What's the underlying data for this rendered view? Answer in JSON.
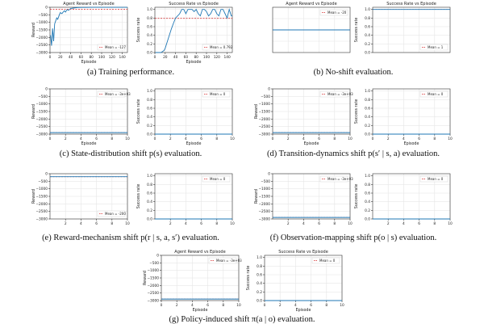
{
  "captions": {
    "a": "(a) Training performance.",
    "b": "(b) No-shift evaluation.",
    "c": "(c) State-distribution shift p(s) evaluation.",
    "d": "(d) Transition-dynamics shift p(s′ | s, a) evaluation.",
    "e": "(e) Reward-mechanism shift p(r | s, a, s′) evaluation.",
    "f": "(f) Observation-mapping shift p(o | s) evaluation.",
    "g": "(g) Policy-induced shift π(a | o) evaluation."
  },
  "colors": {
    "line": "#1f77b4",
    "mean": "#d62728",
    "grid": "#e6e6e6",
    "axis": "#333333"
  },
  "chart_data": [
    {
      "id": "a-reward",
      "type": "line",
      "title": "Agent Reward vs Episode",
      "xlabel": "Episode",
      "ylabel": "Reward",
      "xlim": [
        0,
        150
      ],
      "ylim": [
        -3000,
        0
      ],
      "xticks": [
        0,
        20,
        40,
        60,
        80,
        100,
        120,
        140
      ],
      "yticks": [
        0,
        -500,
        -1000,
        -1500,
        -2000,
        -2500,
        -3000
      ],
      "ytick_labels": [
        "0",
        "−500",
        "−1000",
        "−1500",
        "−2000",
        "−2500",
        "−3000"
      ],
      "grid": true,
      "legend": "bottom-right",
      "legend_text": "Mean = -127",
      "mean": -127,
      "x": [
        1,
        3,
        5,
        7,
        9,
        11,
        13,
        15,
        18,
        20,
        23,
        26,
        28,
        30,
        33,
        36,
        40,
        44,
        48,
        52,
        56,
        60,
        70,
        80,
        90,
        100,
        110,
        120,
        130,
        140,
        150
      ],
      "y": [
        -1850,
        -2550,
        -1400,
        -2250,
        -1100,
        -900,
        -700,
        -800,
        -500,
        -350,
        -420,
        -300,
        -230,
        -320,
        -150,
        -200,
        -80,
        -60,
        -40,
        -20,
        -15,
        -10,
        -8,
        -6,
        -5,
        -5,
        -5,
        -5,
        -5,
        -5,
        -5
      ]
    },
    {
      "id": "a-success",
      "type": "line",
      "title": "Success Rate vs Episode",
      "xlabel": "Episode",
      "ylabel": "Success rate",
      "xlim": [
        0,
        150
      ],
      "ylim": [
        0,
        1.05
      ],
      "xticks": [
        0,
        20,
        40,
        60,
        80,
        100,
        120,
        140
      ],
      "yticks": [
        0,
        0.2,
        0.4,
        0.6,
        0.8,
        1.0
      ],
      "ytick_labels": [
        "0.0",
        "0.2",
        "0.4",
        "0.6",
        "0.8",
        "1.0"
      ],
      "grid": true,
      "legend": "bottom-right",
      "legend_text": "Mean = 0.792",
      "mean": 0.792,
      "x": [
        1,
        12,
        18,
        20,
        24,
        28,
        32,
        36,
        40,
        44,
        48,
        52,
        56,
        60,
        64,
        68,
        72,
        76,
        80,
        84,
        88,
        92,
        96,
        100,
        104,
        108,
        112,
        116,
        120,
        124,
        128,
        132,
        136,
        140,
        144,
        148,
        150
      ],
      "y": [
        0,
        0,
        0.05,
        0.1,
        0.25,
        0.4,
        0.55,
        0.68,
        0.8,
        0.85,
        0.9,
        1.0,
        1.0,
        0.9,
        1.0,
        1.0,
        1.0,
        0.95,
        1.0,
        0.9,
        0.85,
        1.0,
        1.0,
        0.95,
        0.85,
        0.9,
        1.0,
        1.0,
        0.9,
        0.85,
        1.0,
        1.0,
        0.9,
        0.8,
        1.0,
        0.85,
        0.85
      ]
    },
    {
      "id": "b-reward",
      "type": "line",
      "title": "Agent Reward vs Episode",
      "xlabel": "",
      "ylabel": "",
      "xlim": [
        0,
        10
      ],
      "ylim": [
        -40,
        0
      ],
      "xticks": [],
      "yticks": [],
      "grid": true,
      "legend": "top-right",
      "legend_text": "Mean = -20",
      "mean": -20,
      "x": [
        0,
        10
      ],
      "y": [
        -20,
        -20
      ]
    },
    {
      "id": "b-success",
      "type": "line",
      "title": "Success Rate vs Episode",
      "xlabel": "",
      "ylabel": "Success rate",
      "xlim": [
        0,
        10
      ],
      "ylim": [
        0,
        1.05
      ],
      "xticks": [],
      "yticks": [
        0,
        0.2,
        0.4,
        0.6,
        0.8,
        1.0
      ],
      "ytick_labels": [
        "0.0",
        "0.2",
        "0.4",
        "0.6",
        "0.8",
        "1.0"
      ],
      "grid": true,
      "legend": "bottom-right",
      "legend_text": "Mean = 1",
      "mean": 1,
      "x": [
        0,
        10
      ],
      "y": [
        1,
        1
      ]
    },
    {
      "id": "c-reward",
      "type": "line",
      "title": "",
      "xlabel": "Episode",
      "ylabel": "Reward",
      "xlim": [
        0,
        10
      ],
      "ylim": [
        -3000,
        0
      ],
      "xticks": [
        0,
        2,
        4,
        6,
        8,
        10
      ],
      "yticks": [
        0,
        -500,
        -1000,
        -1500,
        -2000,
        -2500,
        -3000
      ],
      "ytick_labels": [
        "0",
        "−500",
        "−1000",
        "−1500",
        "−2000",
        "−2500",
        "−3000"
      ],
      "grid": true,
      "legend": "top-right",
      "legend_text": "Mean = -3e+03",
      "mean": -2900,
      "x": [
        0,
        10
      ],
      "y": [
        -2900,
        -2900
      ]
    },
    {
      "id": "c-success",
      "type": "line",
      "title": "",
      "xlabel": "Episode",
      "ylabel": "Success rate",
      "xlim": [
        0,
        10
      ],
      "ylim": [
        0,
        1.05
      ],
      "xticks": [
        0,
        2,
        4,
        6,
        8,
        10
      ],
      "yticks": [
        0,
        0.2,
        0.4,
        0.6,
        0.8,
        1.0
      ],
      "ytick_labels": [
        "0.0",
        "0.2",
        "0.4",
        "0.6",
        "0.8",
        "1.0"
      ],
      "grid": true,
      "legend": "top-right",
      "legend_text": "Mean = 0",
      "mean": 0,
      "x": [
        0,
        10
      ],
      "y": [
        0,
        0
      ]
    },
    {
      "id": "d-reward",
      "type": "line",
      "title": "",
      "xlabel": "Episode",
      "ylabel": "Reward",
      "xlim": [
        0,
        10
      ],
      "ylim": [
        -3000,
        0
      ],
      "xticks": [
        0,
        2,
        4,
        6,
        8,
        10
      ],
      "yticks": [
        0,
        -500,
        -1000,
        -1500,
        -2000,
        -2500,
        -3000
      ],
      "ytick_labels": [
        "0",
        "−500",
        "−1000",
        "−1500",
        "−2000",
        "−2500",
        "−3000"
      ],
      "grid": true,
      "legend": "top-right",
      "legend_text": "Mean = -3e+03",
      "mean": -2900,
      "x": [
        0,
        10
      ],
      "y": [
        -2900,
        -2900
      ]
    },
    {
      "id": "d-success",
      "type": "line",
      "title": "",
      "xlabel": "Episode",
      "ylabel": "Success rate",
      "xlim": [
        0,
        10
      ],
      "ylim": [
        0,
        1.05
      ],
      "xticks": [
        0,
        2,
        4,
        6,
        8,
        10
      ],
      "yticks": [
        0,
        0.2,
        0.4,
        0.6,
        0.8,
        1.0
      ],
      "ytick_labels": [
        "0.0",
        "0.2",
        "0.4",
        "0.6",
        "0.8",
        "1.0"
      ],
      "grid": true,
      "legend": "top-right",
      "legend_text": "Mean = 0",
      "mean": 0,
      "x": [
        0,
        10
      ],
      "y": [
        0,
        0
      ]
    },
    {
      "id": "e-reward",
      "type": "line",
      "title": "",
      "xlabel": "",
      "ylabel": "Reward",
      "xlim": [
        0,
        10
      ],
      "ylim": [
        -3000,
        0
      ],
      "xticks": [
        2,
        4,
        6,
        8,
        10
      ],
      "yticks": [
        0,
        -500,
        -1000,
        -1500,
        -2000,
        -2500,
        -3000
      ],
      "ytick_labels": [
        "0",
        "−500",
        "−1000",
        "−1500",
        "−2000",
        "−2500",
        "−3000"
      ],
      "grid": true,
      "legend": "bottom-right",
      "legend_text": "Mean = -200",
      "mean": -200,
      "x": [
        0,
        10
      ],
      "y": [
        -200,
        -200
      ]
    },
    {
      "id": "e-success",
      "type": "line",
      "title": "",
      "xlabel": "",
      "ylabel": "Success rate",
      "xlim": [
        0,
        10
      ],
      "ylim": [
        0,
        1.05
      ],
      "xticks": [
        2,
        4,
        6,
        8,
        10
      ],
      "yticks": [
        0,
        0.2,
        0.4,
        0.6,
        0.8,
        1.0
      ],
      "ytick_labels": [
        "0.0",
        "0.2",
        "0.4",
        "0.6",
        "0.8",
        "1.0"
      ],
      "grid": true,
      "legend": "top-right",
      "legend_text": "Mean = 0",
      "mean": 0,
      "x": [
        0,
        10
      ],
      "y": [
        0,
        0
      ]
    },
    {
      "id": "f-reward",
      "type": "line",
      "title": "",
      "xlabel": "",
      "ylabel": "Reward",
      "xlim": [
        0,
        10
      ],
      "ylim": [
        -3000,
        0
      ],
      "xticks": [
        2,
        4,
        6,
        8,
        10
      ],
      "yticks": [
        0,
        -500,
        -1000,
        -1500,
        -2000,
        -2500,
        -3000
      ],
      "ytick_labels": [
        "0",
        "−500",
        "−1000",
        "−1500",
        "−2000",
        "−2500",
        "−3000"
      ],
      "grid": true,
      "legend": "top-right",
      "legend_text": "Mean = -3e+03",
      "mean": -2900,
      "x": [
        0,
        10
      ],
      "y": [
        -2900,
        -2900
      ]
    },
    {
      "id": "f-success",
      "type": "line",
      "title": "",
      "xlabel": "",
      "ylabel": "Success rate",
      "xlim": [
        0,
        10
      ],
      "ylim": [
        0,
        1.05
      ],
      "xticks": [
        2,
        4,
        6,
        8,
        10
      ],
      "yticks": [
        0,
        0.2,
        0.4,
        0.6,
        0.8,
        1.0
      ],
      "ytick_labels": [
        "0.0",
        "0.2",
        "0.4",
        "0.6",
        "0.8",
        "1.0"
      ],
      "grid": true,
      "legend": "top-right",
      "legend_text": "Mean = 0",
      "mean": 0,
      "x": [
        0,
        10
      ],
      "y": [
        0,
        0
      ]
    },
    {
      "id": "g-reward",
      "type": "line",
      "title": "Agent Reward vs Episode",
      "xlabel": "Episode",
      "ylabel": "Reward",
      "xlim": [
        0,
        10
      ],
      "ylim": [
        -3000,
        0
      ],
      "xticks": [
        0,
        2,
        4,
        6,
        8,
        10
      ],
      "yticks": [
        0,
        -500,
        -1000,
        -1500,
        -2000,
        -2500,
        -3000
      ],
      "ytick_labels": [
        "0",
        "−500",
        "−1000",
        "−1500",
        "−2000",
        "−2500",
        "−3000"
      ],
      "grid": true,
      "legend": "top-right",
      "legend_text": "Mean = -3e+03",
      "mean": -2900,
      "x": [
        0,
        10
      ],
      "y": [
        -2900,
        -2900
      ]
    },
    {
      "id": "g-success",
      "type": "line",
      "title": "Success Rate vs Episode",
      "xlabel": "Episode",
      "ylabel": "Success rate",
      "xlim": [
        0,
        10
      ],
      "ylim": [
        0,
        1.05
      ],
      "xticks": [
        0,
        2,
        4,
        6,
        8,
        10
      ],
      "yticks": [
        0,
        0.2,
        0.4,
        0.6,
        0.8,
        1.0
      ],
      "ytick_labels": [
        "0.0",
        "0.2",
        "0.4",
        "0.6",
        "0.8",
        "1.0"
      ],
      "grid": true,
      "legend": "top-right",
      "legend_text": "Mean = 0",
      "mean": 0,
      "x": [
        0,
        10
      ],
      "y": [
        0,
        0
      ]
    }
  ]
}
